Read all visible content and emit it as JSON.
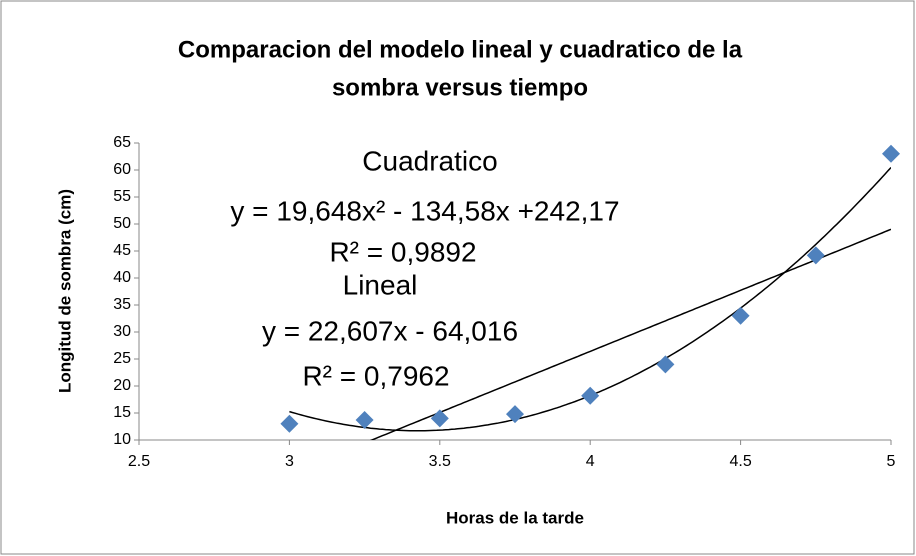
{
  "chart_data": {
    "type": "scatter",
    "title": [
      "Comparacion del modelo lineal y cuadratico de la",
      "sombra versus  tiempo"
    ],
    "x_label": "Horas de la tarde",
    "y_label": "Longitud de sombra  (cm)",
    "series": [
      {
        "color": "#4f81bd",
        "x": [
          3,
          3.25,
          3.5,
          3.75,
          4,
          4.25,
          4.5,
          4.75,
          5
        ],
        "values": [
          13,
          13.7,
          14,
          14.8,
          18.2,
          24,
          33,
          44.2,
          63
        ]
      }
    ],
    "trendlines": [
      {
        "name": "Cuadratico",
        "equation": "y = 19,648x² - 134,58x +242,17",
        "r2": "R² = 0,9892",
        "coefficients": [
          19.648,
          -134.58,
          242.17
        ]
      },
      {
        "name": "Lineal",
        "equation": "y = 22,607x - 64,016",
        "r2": "R² = 0,7962",
        "coefficients": [
          22.607,
          -64.016
        ]
      }
    ],
    "xlim": [
      2.5,
      5
    ],
    "xticks": [
      2.5,
      3,
      3.5,
      4,
      4.5,
      5
    ],
    "ylim": [
      10,
      65
    ],
    "yticks": [
      10,
      15,
      20,
      25,
      30,
      35,
      40,
      45,
      50,
      55,
      60,
      65
    ],
    "grid": false
  }
}
